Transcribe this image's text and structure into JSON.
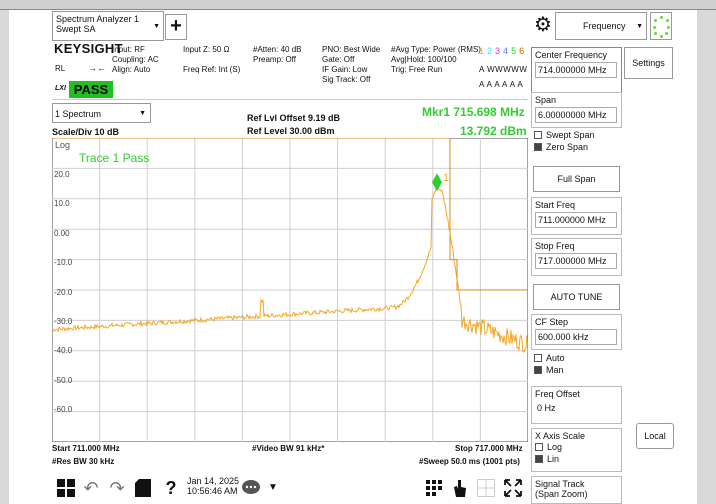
{
  "toolbar": {
    "mode_line1": "Spectrum Analyzer 1",
    "mode_line2": "Swept SA",
    "add_label": "+",
    "menu_label": "Frequency"
  },
  "status": {
    "brand": "KEYSIGHT",
    "rl": "RL",
    "lxi": "LXI",
    "pass": "PASS",
    "input": "Input: RF",
    "coupling": "Coupling: AC",
    "align": "Align: Auto",
    "input_z": "Input Z: 50 Ω",
    "freq_ref": "Freq Ref: Int (S)",
    "atten": "#Atten: 40 dB",
    "preamp": "Preamp: Off",
    "pno": "PNO: Best Wide",
    "gate": "Gate: Off",
    "if_gain": "IF Gain: Low",
    "sig_track": "Sig Track: Off",
    "avg_type": "#Avg Type: Power (RMS)",
    "avg_hold": "Avg|Hold: 100/100",
    "trig": "Trig: Free Run",
    "trace_digits": [
      "1",
      "2",
      "3",
      "4",
      "5",
      "6"
    ],
    "trace_types": "A WWWWW",
    "trace_dets": "A A A A A A"
  },
  "plot_header": {
    "spectrum_select": "1 Spectrum",
    "ref_offset": "Ref Lvl Offset 9.19 dB",
    "ref_level": "Ref Level 30.00 dBm",
    "marker_freq": "Mkr1  715.698 MHz",
    "marker_amp": "13.792 dBm",
    "scale": "Scale/Div 10 dB",
    "log": "Log",
    "trace_status": "Trace 1 Pass",
    "marker_label": "1"
  },
  "y_ticks": [
    "20.0",
    "10.0",
    "0.00",
    "-10.0",
    "-20.0",
    "-30.0",
    "-40.0",
    "-50.0",
    "-60.0"
  ],
  "bottom": {
    "start": "Start 711.000 MHz",
    "res_bw": "#Res BW 30 kHz",
    "video_bw": "#Video BW 91 kHz*",
    "stop": "Stop 717.000 MHz",
    "sweep": "#Sweep 50.0 ms (1001 pts)"
  },
  "taskbar": {
    "date": "Jan 14, 2025",
    "time": "10:56:46 AM"
  },
  "right_panel": {
    "center_freq_label": "Center Frequency",
    "center_freq_value": "714.000000 MHz",
    "span_label": "Span",
    "span_value": "6.00000000 MHz",
    "swept_span": "Swept Span",
    "zero_span": "Zero Span",
    "full_span": "Full Span",
    "start_freq_label": "Start Freq",
    "start_freq_value": "711.000000 MHz",
    "stop_freq_label": "Stop Freq",
    "stop_freq_value": "717.000000 MHz",
    "auto_tune": "AUTO TUNE",
    "cf_step_label": "CF Step",
    "cf_step_value": "600.000 kHz",
    "auto": "Auto",
    "man": "Man",
    "freq_offset_label": "Freq Offset",
    "freq_offset_value": "0 Hz",
    "x_axis_label": "X Axis Scale",
    "x_log": "Log",
    "x_lin": "Lin",
    "signal_track": "Signal Track",
    "span_zoom": "(Span Zoom)",
    "settings": "Settings",
    "local": "Local"
  },
  "colors": {
    "trace": "#f5a623",
    "limit": "#d88a1a",
    "marker": "#33cc33",
    "pass_bg": "#20c020"
  }
}
